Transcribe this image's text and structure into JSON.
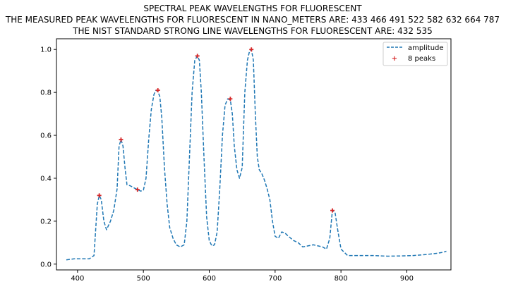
{
  "chart_data": {
    "type": "line",
    "title": "SPECTRAL PEAK WAVELENGTHS FOR FLUORESCENT",
    "subtitle_lines": [
      "THE MEASURED PEAK WAVELENGTHS FOR FLUORESCENT IN NANO_METERS ARE: 433 466 491 522 582 632 664 787",
      "THE NIST STANDARD STRONG LINE WAVELENGTHS FOR FLUORESCENT ARE: 432 535"
    ],
    "xlabel": "",
    "ylabel": "",
    "xlim": [
      368,
      967
    ],
    "ylim": [
      -0.027,
      1.05
    ],
    "xticks": [
      400,
      500,
      600,
      700,
      800,
      900
    ],
    "yticks": [
      0.0,
      0.2,
      0.4,
      0.6,
      0.8,
      1.0
    ],
    "grid": false,
    "legend_position": "top-right",
    "colors": {
      "line": "#1f77b4",
      "peak_marker": "#d62728"
    },
    "series": [
      {
        "name": "amplitude",
        "style": "dashed",
        "x": [
          383,
          395,
          405,
          418,
          425,
          430,
          433,
          436,
          440,
          444,
          450,
          455,
          460,
          463,
          466,
          469,
          472,
          475,
          480,
          486,
          491,
          496,
          500,
          504,
          508,
          512,
          516,
          519,
          522,
          525,
          528,
          532,
          536,
          540,
          545,
          550,
          556,
          562,
          566,
          570,
          574,
          578,
          582,
          585,
          588,
          592,
          596,
          600,
          604,
          608,
          612,
          616,
          620,
          624,
          628,
          632,
          635,
          638,
          642,
          646,
          650,
          654,
          658,
          661,
          664,
          667,
          670,
          673,
          676,
          680,
          684,
          688,
          692,
          696,
          700,
          705,
          710,
          715,
          720,
          728,
          735,
          742,
          750,
          758,
          765,
          772,
          778,
          783,
          787,
          791,
          795,
          800,
          810,
          830,
          850,
          870,
          890,
          910,
          930,
          945,
          955,
          960
        ],
        "y": [
          0.02,
          0.025,
          0.025,
          0.025,
          0.04,
          0.28,
          0.32,
          0.3,
          0.2,
          0.16,
          0.2,
          0.25,
          0.35,
          0.55,
          0.58,
          0.55,
          0.45,
          0.37,
          0.365,
          0.355,
          0.347,
          0.34,
          0.345,
          0.4,
          0.58,
          0.72,
          0.79,
          0.81,
          0.805,
          0.78,
          0.68,
          0.45,
          0.28,
          0.17,
          0.12,
          0.09,
          0.08,
          0.09,
          0.2,
          0.5,
          0.8,
          0.95,
          0.97,
          0.95,
          0.8,
          0.5,
          0.22,
          0.11,
          0.085,
          0.09,
          0.15,
          0.35,
          0.6,
          0.74,
          0.77,
          0.765,
          0.7,
          0.55,
          0.44,
          0.4,
          0.45,
          0.8,
          0.95,
          0.99,
          1.0,
          0.95,
          0.7,
          0.5,
          0.44,
          0.42,
          0.39,
          0.35,
          0.3,
          0.2,
          0.13,
          0.12,
          0.15,
          0.145,
          0.13,
          0.11,
          0.1,
          0.08,
          0.085,
          0.09,
          0.085,
          0.08,
          0.07,
          0.12,
          0.25,
          0.24,
          0.16,
          0.07,
          0.04,
          0.04,
          0.04,
          0.037,
          0.038,
          0.04,
          0.045,
          0.05,
          0.055,
          0.06
        ]
      },
      {
        "name": "8 peaks",
        "style": "markers",
        "x": [
          433,
          466,
          491,
          522,
          582,
          632,
          664,
          787
        ],
        "y": [
          0.32,
          0.58,
          0.347,
          0.81,
          0.97,
          0.77,
          1.0,
          0.25
        ]
      }
    ]
  }
}
